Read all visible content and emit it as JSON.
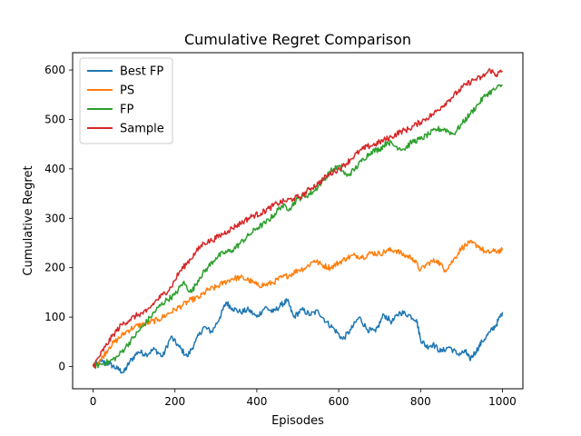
{
  "chart_data": {
    "type": "line",
    "title": "Cumulative Regret Comparison",
    "xlabel": "Episodes",
    "ylabel": "Cumulative Regret",
    "xlim": [
      -50,
      1050
    ],
    "ylim": [
      -45,
      635
    ],
    "x_ticks": [
      0,
      200,
      400,
      600,
      800,
      1000
    ],
    "y_ticks": [
      0,
      100,
      200,
      300,
      400,
      500,
      600
    ],
    "grid": false,
    "legend_position": "top-left",
    "series": [
      {
        "name": "Best FP",
        "color": "#1f77b4",
        "points": [
          [
            0,
            0
          ],
          [
            20,
            10
          ],
          [
            40,
            5
          ],
          [
            60,
            -5
          ],
          [
            75,
            -12
          ],
          [
            90,
            10
          ],
          [
            110,
            30
          ],
          [
            130,
            25
          ],
          [
            150,
            35
          ],
          [
            170,
            20
          ],
          [
            190,
            60
          ],
          [
            210,
            40
          ],
          [
            230,
            20
          ],
          [
            250,
            50
          ],
          [
            270,
            80
          ],
          [
            290,
            70
          ],
          [
            310,
            100
          ],
          [
            325,
            130
          ],
          [
            340,
            118
          ],
          [
            360,
            110
          ],
          [
            380,
            115
          ],
          [
            400,
            100
          ],
          [
            420,
            120
          ],
          [
            440,
            110
          ],
          [
            460,
            125
          ],
          [
            475,
            133
          ],
          [
            490,
            100
          ],
          [
            510,
            115
          ],
          [
            530,
            105
          ],
          [
            550,
            112
          ],
          [
            570,
            90
          ],
          [
            590,
            75
          ],
          [
            610,
            55
          ],
          [
            630,
            75
          ],
          [
            650,
            100
          ],
          [
            670,
            75
          ],
          [
            690,
            70
          ],
          [
            710,
            105
          ],
          [
            730,
            90
          ],
          [
            750,
            110
          ],
          [
            770,
            105
          ],
          [
            790,
            95
          ],
          [
            800,
            55
          ],
          [
            815,
            40
          ],
          [
            830,
            45
          ],
          [
            850,
            30
          ],
          [
            870,
            40
          ],
          [
            890,
            25
          ],
          [
            910,
            30
          ],
          [
            920,
            15
          ],
          [
            935,
            30
          ],
          [
            950,
            50
          ],
          [
            970,
            70
          ],
          [
            985,
            85
          ],
          [
            1000,
            110
          ]
        ]
      },
      {
        "name": "PS",
        "color": "#ff7f0e",
        "points": [
          [
            0,
            0
          ],
          [
            20,
            15
          ],
          [
            40,
            40
          ],
          [
            60,
            55
          ],
          [
            80,
            70
          ],
          [
            100,
            80
          ],
          [
            120,
            85
          ],
          [
            140,
            90
          ],
          [
            160,
            95
          ],
          [
            180,
            105
          ],
          [
            200,
            115
          ],
          [
            220,
            125
          ],
          [
            240,
            135
          ],
          [
            260,
            140
          ],
          [
            280,
            155
          ],
          [
            300,
            160
          ],
          [
            320,
            170
          ],
          [
            340,
            178
          ],
          [
            360,
            180
          ],
          [
            380,
            175
          ],
          [
            400,
            165
          ],
          [
            420,
            165
          ],
          [
            440,
            170
          ],
          [
            460,
            180
          ],
          [
            480,
            185
          ],
          [
            500,
            195
          ],
          [
            520,
            200
          ],
          [
            540,
            215
          ],
          [
            560,
            205
          ],
          [
            580,
            200
          ],
          [
            600,
            210
          ],
          [
            620,
            220
          ],
          [
            640,
            225
          ],
          [
            660,
            222
          ],
          [
            680,
            230
          ],
          [
            700,
            228
          ],
          [
            720,
            235
          ],
          [
            740,
            235
          ],
          [
            760,
            225
          ],
          [
            780,
            220
          ],
          [
            800,
            195
          ],
          [
            820,
            210
          ],
          [
            840,
            215
          ],
          [
            860,
            195
          ],
          [
            880,
            215
          ],
          [
            900,
            240
          ],
          [
            920,
            250
          ],
          [
            940,
            245
          ],
          [
            960,
            230
          ],
          [
            980,
            233
          ],
          [
            1000,
            235
          ]
        ]
      },
      {
        "name": "FP",
        "color": "#2ca02c",
        "points": [
          [
            0,
            0
          ],
          [
            20,
            5
          ],
          [
            40,
            10
          ],
          [
            60,
            20
          ],
          [
            80,
            40
          ],
          [
            100,
            60
          ],
          [
            120,
            80
          ],
          [
            140,
            100
          ],
          [
            160,
            120
          ],
          [
            180,
            135
          ],
          [
            200,
            145
          ],
          [
            220,
            170
          ],
          [
            240,
            150
          ],
          [
            260,
            180
          ],
          [
            280,
            200
          ],
          [
            300,
            220
          ],
          [
            320,
            230
          ],
          [
            340,
            235
          ],
          [
            360,
            250
          ],
          [
            380,
            265
          ],
          [
            400,
            280
          ],
          [
            420,
            290
          ],
          [
            440,
            305
          ],
          [
            460,
            325
          ],
          [
            480,
            320
          ],
          [
            500,
            340
          ],
          [
            520,
            345
          ],
          [
            540,
            355
          ],
          [
            560,
            375
          ],
          [
            580,
            395
          ],
          [
            600,
            405
          ],
          [
            620,
            385
          ],
          [
            640,
            400
          ],
          [
            660,
            420
          ],
          [
            680,
            435
          ],
          [
            700,
            440
          ],
          [
            720,
            455
          ],
          [
            740,
            445
          ],
          [
            760,
            440
          ],
          [
            780,
            455
          ],
          [
            800,
            460
          ],
          [
            820,
            470
          ],
          [
            840,
            480
          ],
          [
            860,
            480
          ],
          [
            880,
            470
          ],
          [
            900,
            490
          ],
          [
            920,
            510
          ],
          [
            940,
            530
          ],
          [
            960,
            550
          ],
          [
            980,
            560
          ],
          [
            1000,
            570
          ]
        ]
      },
      {
        "name": "Sample",
        "color": "#d62728",
        "points": [
          [
            0,
            0
          ],
          [
            15,
            20
          ],
          [
            30,
            40
          ],
          [
            50,
            65
          ],
          [
            70,
            85
          ],
          [
            90,
            95
          ],
          [
            110,
            105
          ],
          [
            130,
            110
          ],
          [
            150,
            130
          ],
          [
            170,
            145
          ],
          [
            190,
            160
          ],
          [
            210,
            190
          ],
          [
            230,
            210
          ],
          [
            250,
            230
          ],
          [
            270,
            250
          ],
          [
            290,
            255
          ],
          [
            310,
            265
          ],
          [
            330,
            275
          ],
          [
            350,
            285
          ],
          [
            370,
            295
          ],
          [
            390,
            305
          ],
          [
            410,
            310
          ],
          [
            430,
            320
          ],
          [
            450,
            330
          ],
          [
            470,
            335
          ],
          [
            490,
            340
          ],
          [
            510,
            345
          ],
          [
            530,
            360
          ],
          [
            550,
            370
          ],
          [
            570,
            385
          ],
          [
            590,
            395
          ],
          [
            610,
            405
          ],
          [
            630,
            420
          ],
          [
            650,
            435
          ],
          [
            670,
            445
          ],
          [
            690,
            450
          ],
          [
            710,
            458
          ],
          [
            730,
            465
          ],
          [
            750,
            475
          ],
          [
            770,
            480
          ],
          [
            790,
            490
          ],
          [
            810,
            500
          ],
          [
            830,
            510
          ],
          [
            850,
            525
          ],
          [
            870,
            540
          ],
          [
            890,
            555
          ],
          [
            910,
            570
          ],
          [
            930,
            580
          ],
          [
            950,
            585
          ],
          [
            970,
            600
          ],
          [
            985,
            590
          ],
          [
            1000,
            598
          ]
        ]
      }
    ]
  }
}
